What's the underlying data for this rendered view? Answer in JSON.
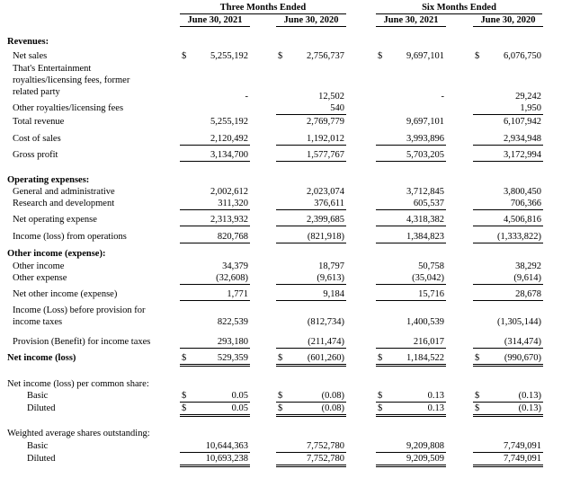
{
  "header": {
    "groups": [
      "Three Months Ended",
      "Six Months Ended"
    ],
    "columns": [
      "June 30, 2021",
      "June 30, 2020",
      "June 30, 2021",
      "June 30, 2020"
    ]
  },
  "rows": [
    {
      "label": "Revenues:"
    },
    {
      "label": "Net sales",
      "currency": [
        "$",
        "$",
        "$",
        "$"
      ],
      "values": [
        "5,255,192",
        "2,756,737",
        "9,697,101",
        "6,076,750"
      ]
    },
    {
      "label": "That's Entertainment royalties/licensing fees, former related party",
      "values": [
        "-",
        "12,502",
        "-",
        "29,242"
      ]
    },
    {
      "label": "Other royalties/licensing fees",
      "values": [
        null,
        "540",
        null,
        "1,950"
      ]
    },
    {
      "label": "Total revenue",
      "values": [
        "5,255,192",
        "2,769,779",
        "9,697,101",
        "6,107,942"
      ]
    },
    {
      "label": "Cost of sales",
      "values": [
        "2,120,492",
        "1,192,012",
        "3,993,896",
        "2,934,948"
      ]
    },
    {
      "label": "Gross profit",
      "values": [
        "3,134,700",
        "1,577,767",
        "5,703,205",
        "3,172,994"
      ]
    },
    {
      "label": "Operating expenses:"
    },
    {
      "label": "General and administrative",
      "values": [
        "2,002,612",
        "2,023,074",
        "3,712,845",
        "3,800,450"
      ]
    },
    {
      "label": "Research and development",
      "values": [
        "311,320",
        "376,611",
        "605,537",
        "706,366"
      ]
    },
    {
      "label": "Net operating expense",
      "values": [
        "2,313,932",
        "2,399,685",
        "4,318,382",
        "4,506,816"
      ]
    },
    {
      "label": "Income (loss) from operations",
      "values": [
        "820,768",
        "(821,918)",
        "1,384,823",
        "(1,333,822)"
      ]
    },
    {
      "label": "Other income (expense):"
    },
    {
      "label": "Other income",
      "values": [
        "34,379",
        "18,797",
        "50,758",
        "38,292"
      ]
    },
    {
      "label": "Other expense",
      "values": [
        "(32,608)",
        "(9,613)",
        "(35,042)",
        "(9,614)"
      ]
    },
    {
      "label": "Net other income (expense)",
      "values": [
        "1,771",
        "9,184",
        "15,716",
        "28,678"
      ]
    },
    {
      "label": "Income (Loss) before provision for income taxes",
      "values": [
        "822,539",
        "(812,734)",
        "1,400,539",
        "(1,305,144)"
      ]
    },
    {
      "label": "Provision (Benefit) for income taxes",
      "values": [
        "293,180",
        "(211,474)",
        "216,017",
        "(314,474)"
      ]
    },
    {
      "label": "Net income (loss)",
      "currency": [
        "$",
        "$",
        "$",
        "$"
      ],
      "values": [
        "529,359",
        "(601,260)",
        "1,184,522",
        "(990,670)"
      ]
    },
    {
      "label": "Net income (loss) per common share:"
    },
    {
      "label": "Basic",
      "currency": [
        "$",
        "$",
        "$",
        "$"
      ],
      "values": [
        "0.05",
        "(0.08)",
        "0.13",
        "(0.13)"
      ]
    },
    {
      "label": "Diluted",
      "currency": [
        "$",
        "$",
        "$",
        "$"
      ],
      "values": [
        "0.05",
        "(0.08)",
        "0.13",
        "(0.13)"
      ]
    },
    {
      "label": "Weighted average shares outstanding:"
    },
    {
      "label": "Basic",
      "values": [
        "10,644,363",
        "7,752,780",
        "9,209,808",
        "7,749,091"
      ]
    },
    {
      "label": "Diluted",
      "values": [
        "10,693,238",
        "7,752,780",
        "9,209,509",
        "7,749,091"
      ]
    }
  ]
}
